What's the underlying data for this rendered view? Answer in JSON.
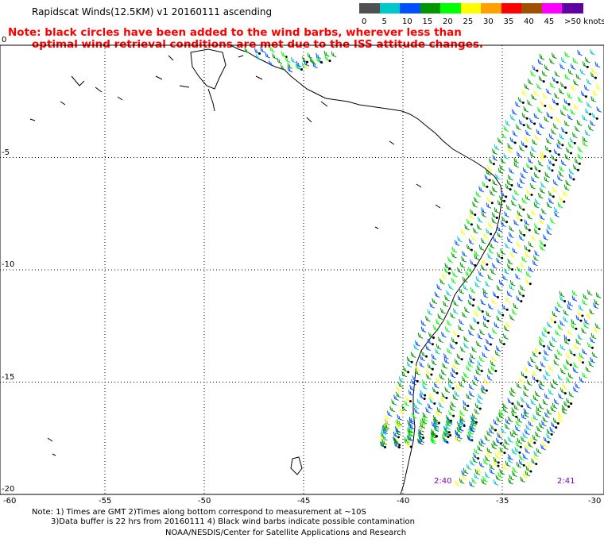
{
  "title": "Rapidscat Winds(12.5KM) v1 20160111 ascending",
  "note_line1": "Note: black circles have been added to the wind barbs, wherever less than",
  "note_line2": "optimal wind retrieval conditions are met due to the ISS attitude changes.",
  "color_scale": {
    "labels": [
      "0",
      "5",
      "10",
      "15",
      "20",
      "25",
      "30",
      "35",
      "40",
      "45",
      ">50 knots"
    ],
    "colors": [
      "#505050",
      "#00c8c8",
      "#0050ff",
      "#009600",
      "#00ff00",
      "#ffff00",
      "#ffa000",
      "#ff0000",
      "#a05000",
      "#ff00ff",
      "#6000a0"
    ]
  },
  "y_axis_labels": [
    "0",
    "-5",
    "-10",
    "-15",
    "-20"
  ],
  "x_axis_labels": [
    "-60",
    "-55",
    "-50",
    "-45",
    "-40",
    "-35",
    "-30"
  ],
  "time_labels": [
    "2:40",
    "2:41"
  ],
  "footnote_line1": "Note: 1) Times are GMT 2)Times along bottom correspond to measurement at ~10S",
  "footnote_line2": "3)Data buffer is 22 hrs from 20160111 4) Black wind barbs indicate possible contamination",
  "credit": "NOAA/NESDIS/Center for Satellite Applications and Research",
  "map_extent": {
    "lon": [
      -60,
      -30
    ],
    "lat": [
      -20,
      0
    ]
  }
}
